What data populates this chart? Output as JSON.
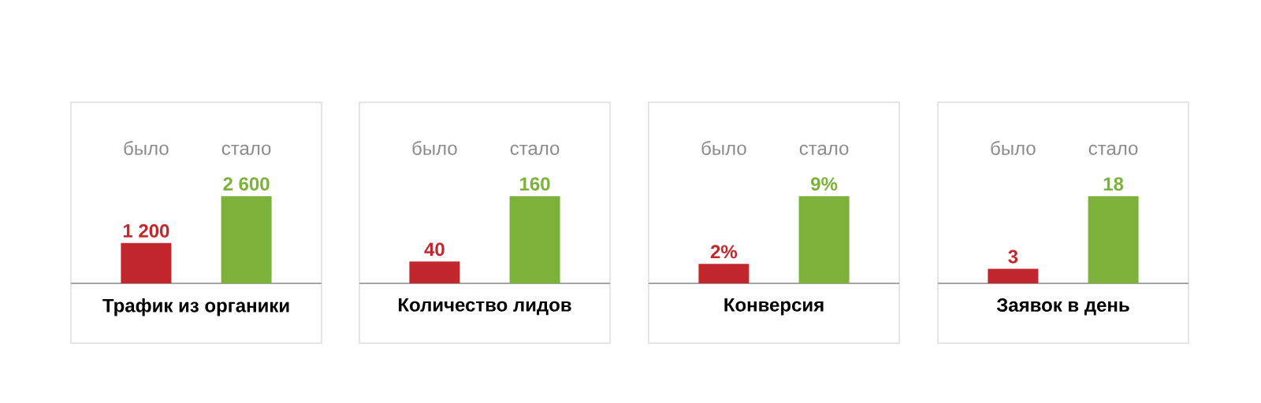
{
  "chart_data": [
    {
      "type": "bar",
      "title": "Трафик из органики",
      "categories": [
        "было",
        "стало"
      ],
      "values": [
        1200,
        2600
      ],
      "value_labels": [
        "1 200",
        "2 600"
      ],
      "colors": [
        "#c1272d",
        "#7cb239"
      ]
    },
    {
      "type": "bar",
      "title": "Количество лидов",
      "categories": [
        "было",
        "стало"
      ],
      "values": [
        40,
        160
      ],
      "value_labels": [
        "40",
        "160"
      ],
      "colors": [
        "#c1272d",
        "#7cb239"
      ]
    },
    {
      "type": "bar",
      "title": "Конверсия",
      "categories": [
        "было",
        "стало"
      ],
      "values": [
        2,
        9
      ],
      "value_labels": [
        "2%",
        "9%"
      ],
      "colors": [
        "#c1272d",
        "#7cb239"
      ]
    },
    {
      "type": "bar",
      "title": "Заявок в день",
      "categories": [
        "было",
        "стало"
      ],
      "values": [
        3,
        18
      ],
      "value_labels": [
        "3",
        "18"
      ],
      "colors": [
        "#c1272d",
        "#7cb239"
      ]
    }
  ]
}
